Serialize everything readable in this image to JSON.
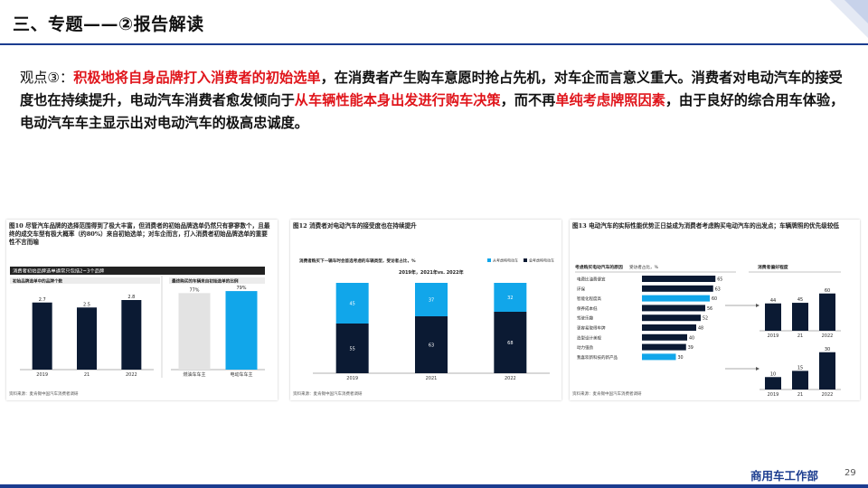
{
  "header": {
    "title": "三、专题——②报告解读"
  },
  "body": {
    "label": "观点③：",
    "segments": [
      {
        "text": "积极地将自身品牌打入消费者的初始选单",
        "red": true
      },
      {
        "text": "，在消费者产生购车意愿时抢占先机，对车企而言意义重大。消费者对电动汽车的接受度也在持续提升，电动汽车消费者愈发倾向于",
        "red": false
      },
      {
        "text": "从车辆性能本身出发进行购车决策",
        "red": true
      },
      {
        "text": "，而不再",
        "red": false
      },
      {
        "text": "单纯考虑牌照因素",
        "red": true
      },
      {
        "text": "，由于良好的综合用车体验，电动汽车车主显示出对电动汽车的极高忠诚度。",
        "red": false
      }
    ]
  },
  "figures": {
    "fig10": {
      "title": "图10 尽管汽车品牌的选择范围得到了极大丰富，但消费者的初始品牌选单仍然只有寥寥数个，且最终的成交车型有极大概率（约80%）来自初始选单；对车企而言，打入消费者初始品牌选单的重要性不言而喻",
      "header": "消费者初始品牌选单通常只包括2~3个品牌",
      "left_sub": "初始品牌选单中的品牌个数",
      "right_sub": "最终购买的车辆来自初始选单的比例",
      "source": "资料来源：麦肯锡中国汽车消费者调研"
    },
    "fig12": {
      "title": "图12 消费者对电动汽车的接受度也在持续提升",
      "question": "消费者购买下一辆车时会首选考虑的车辆类型，受访者占比，%",
      "period": "2019年，2021年vs. 2022年",
      "legend": [
        "从考虑纯电动车",
        "会考虑纯电动车"
      ],
      "source": "资料来源：麦肯锡中国汽车消费者调研"
    },
    "fig13": {
      "title": "图13 电动汽车的实际性能优势正日益成为消费者考虑购买电动汽车的出发点；车辆牌照的优先级较低",
      "left_header": "考虑购买电动汽车的原因",
      "left_unit": "受访者占比，%",
      "right_header": "消费者偏好程度",
      "source": "资料来源：麦肯锡中国汽车消费者调研"
    }
  },
  "chart_data": [
    {
      "type": "bar",
      "categories": [
        "2019",
        "21",
        "2022"
      ],
      "values": [
        2.7,
        2.5,
        2.8
      ],
      "ylim": [
        0,
        4
      ]
    },
    {
      "type": "bar",
      "categories": [
        "燃油车车主",
        "电动车车主"
      ],
      "values": [
        77,
        79
      ],
      "ylim": [
        0,
        100
      ],
      "colors": [
        "#e3e3e3",
        "#11a6ea"
      ]
    },
    {
      "type": "bar",
      "categories": [
        "2019",
        "2021",
        "2022"
      ],
      "series": [
        {
          "name": "会考虑纯电动车",
          "values": [
            55,
            63,
            68
          ]
        },
        {
          "name": "从考虑纯电动车",
          "values": [
            45,
            37,
            32
          ]
        }
      ],
      "colors": [
        "#0b1a33",
        "#11a6ea"
      ],
      "ylim": [
        0,
        100
      ]
    },
    {
      "type": "bar",
      "orientation": "horizontal",
      "categories": [
        "电费比油费便宜",
        "环保",
        "智能化程度高",
        "保养成本低",
        "驾驶乐趣",
        "更容易取得车牌",
        "造型设计美观",
        "动力强劲",
        "我喜欢新科技的新产品"
      ],
      "values": [
        65,
        63,
        60,
        56,
        52,
        48,
        40,
        39,
        30
      ],
      "highlight": [
        2,
        8
      ],
      "xlim": [
        0,
        80
      ]
    },
    {
      "type": "bar",
      "categories": [
        "2019",
        "21",
        "2022"
      ],
      "values": [
        44,
        45,
        60
      ],
      "ylim": [
        0,
        80
      ]
    },
    {
      "type": "bar",
      "categories": [
        "2019",
        "21",
        "2022"
      ],
      "values": [
        10,
        15,
        30
      ],
      "ylim": [
        0,
        40
      ]
    }
  ],
  "footer": {
    "dept": "商用车工作部",
    "page": "29"
  },
  "colors": {
    "brand": "#1b3c8f",
    "red": "#e0151b",
    "cyan": "#11a6ea",
    "navy": "#0b1a33"
  }
}
